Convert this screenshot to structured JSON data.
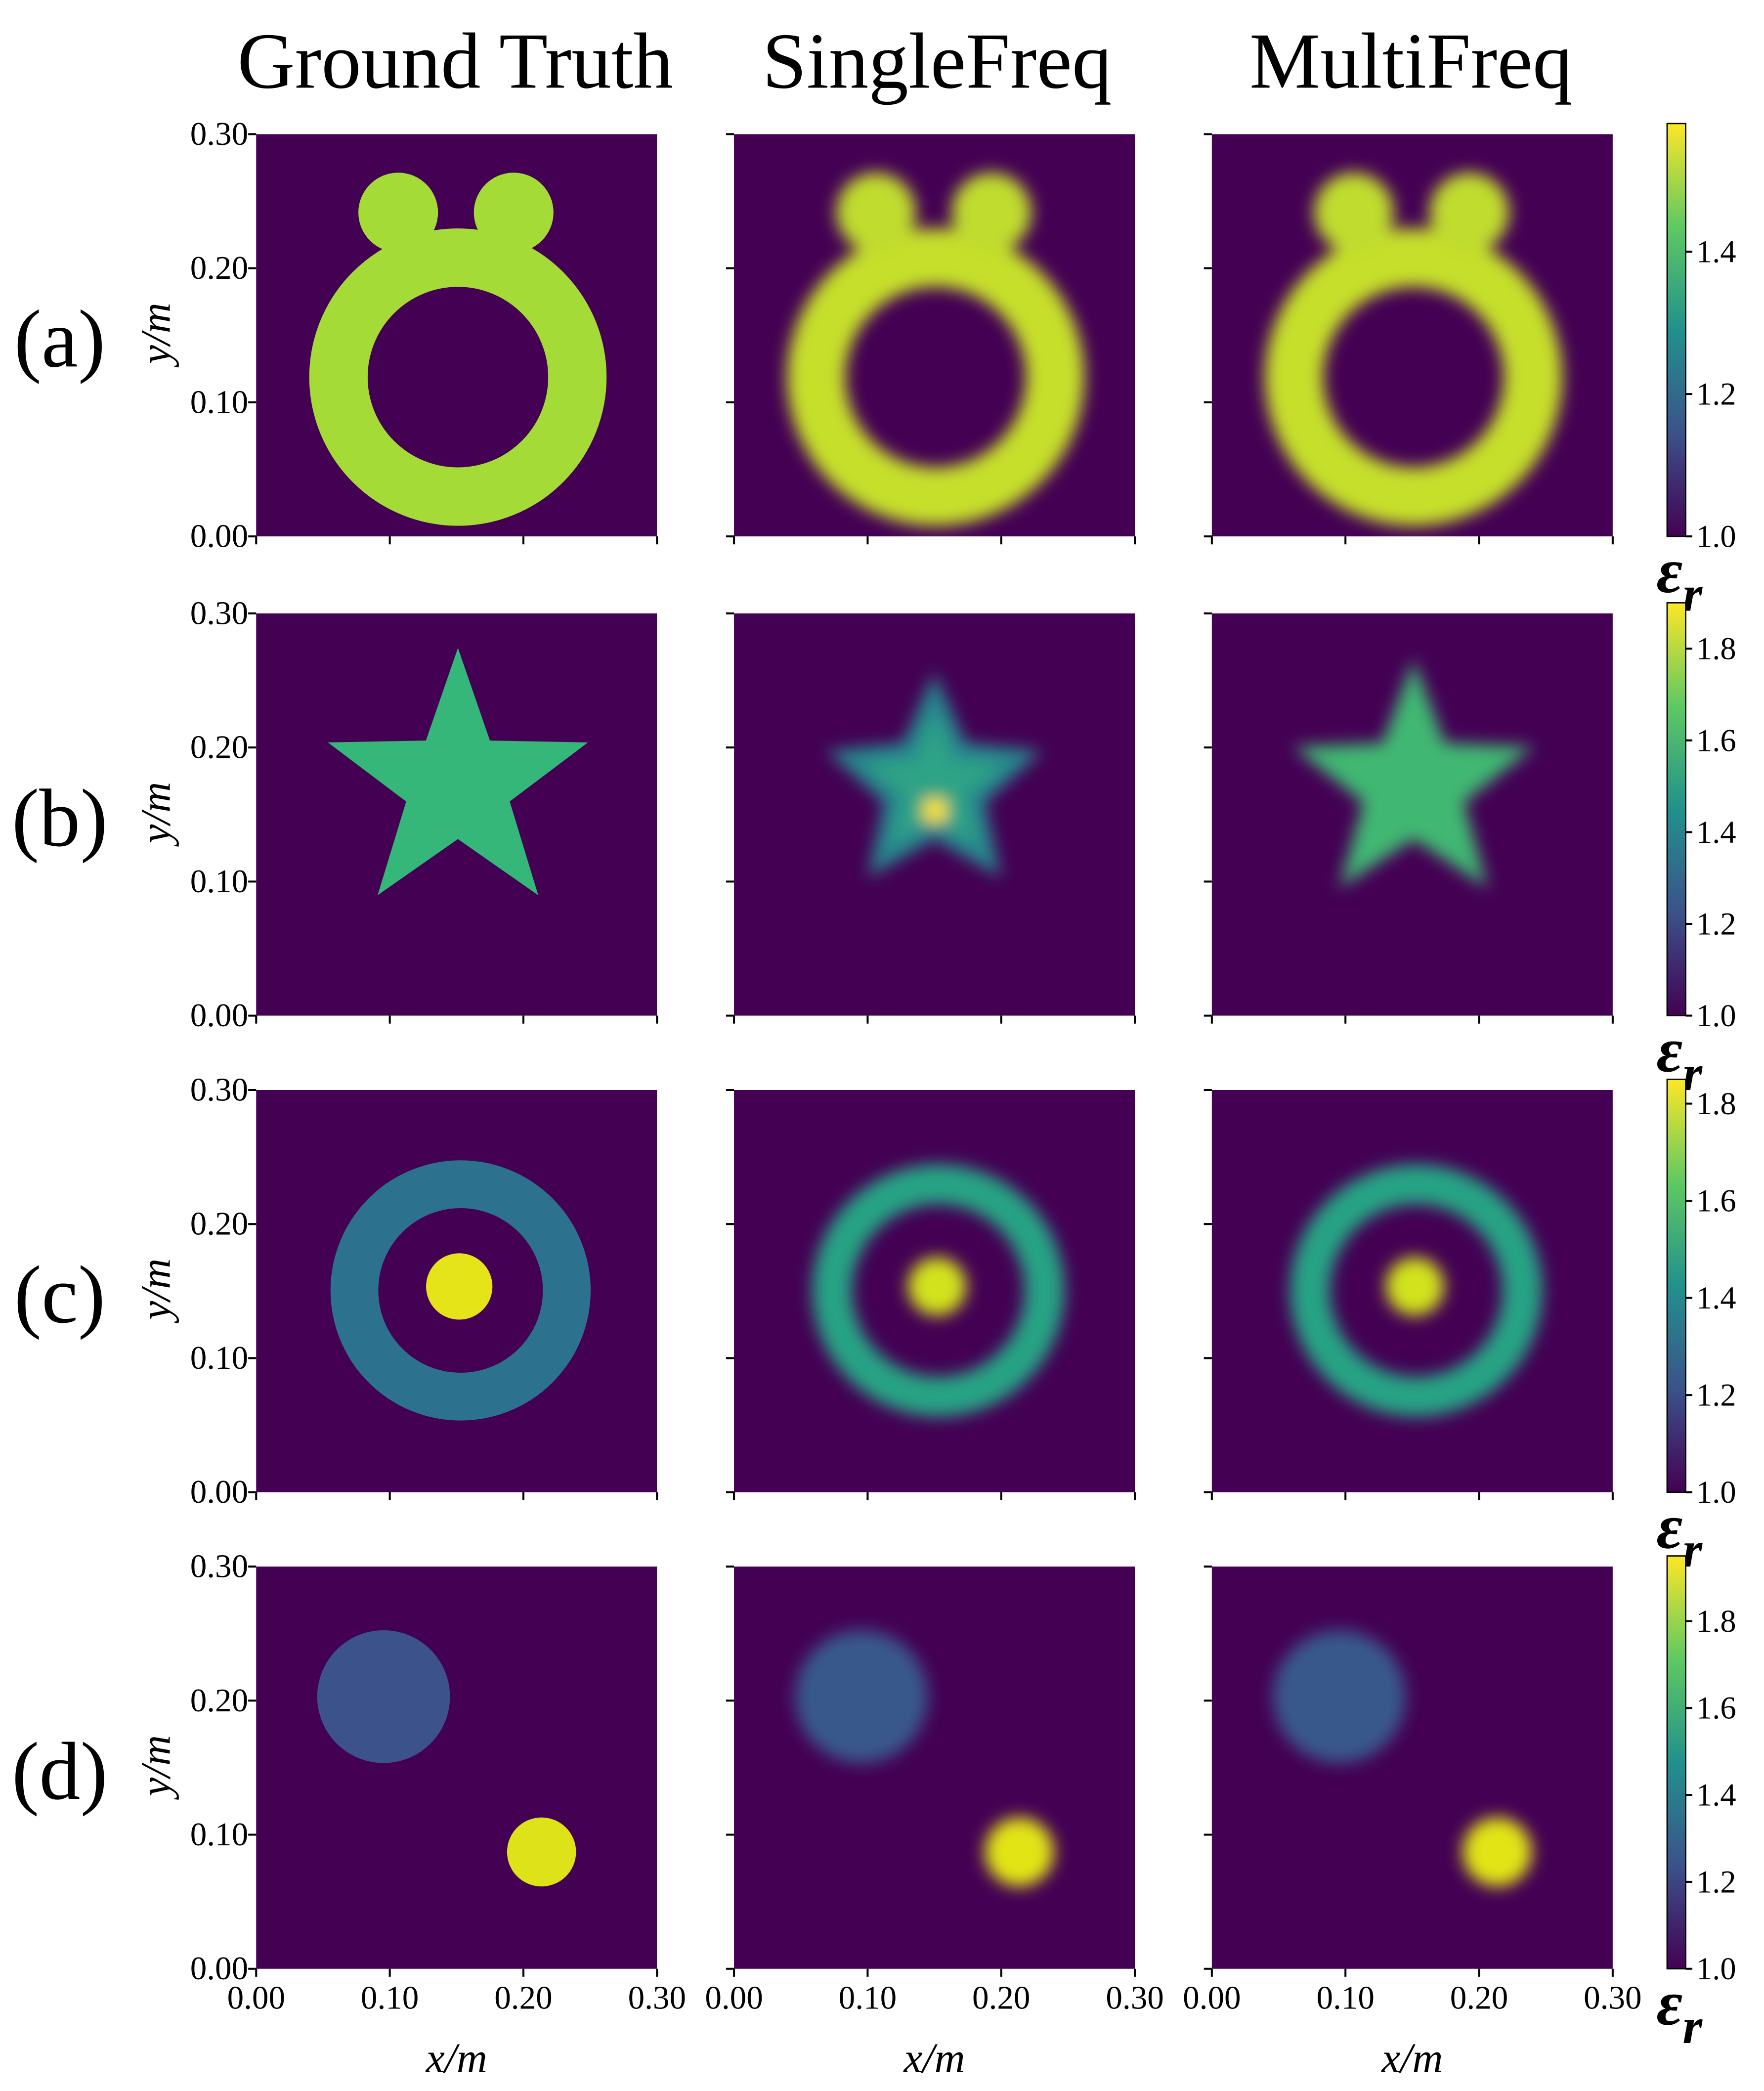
{
  "column_titles": [
    "Ground Truth",
    "SingleFreq",
    "MultiFreq"
  ],
  "chart_data": [
    {
      "type": "heatmap",
      "label": "(a)",
      "ylabel": "y/m",
      "colormap": "viridis",
      "xlim": [
        0,
        0.3
      ],
      "ylim": [
        0,
        0.3
      ],
      "xticks": [
        0,
        0.1,
        0.2,
        0.3
      ],
      "yticks": [
        {
          "value": 0,
          "label": "0.00"
        },
        {
          "value": 0.1,
          "label": "0.10"
        },
        {
          "value": 0.2,
          "label": "0.20"
        },
        {
          "value": 0.3,
          "label": "0.30"
        }
      ],
      "colorbar": {
        "lim": [
          1,
          1.58
        ],
        "ticks": [
          {
            "value": 1,
            "label": "1.0"
          },
          1.2,
          1.4
        ],
        "symbol": "ε",
        "subscript": "r"
      }
    },
    {
      "type": "heatmap",
      "label": "(b)",
      "ylabel": "y/m",
      "colormap": "viridis",
      "xlim": [
        0,
        0.3
      ],
      "ylim": [
        0,
        0.3
      ],
      "xticks": [
        0,
        0.1,
        0.2,
        0.3
      ],
      "yticks": [
        {
          "value": 0,
          "label": "0.00"
        },
        {
          "value": 0.1,
          "label": "0.10"
        },
        {
          "value": 0.2,
          "label": "0.20"
        },
        {
          "value": 0.3,
          "label": "0.30"
        }
      ],
      "colorbar": {
        "lim": [
          1,
          1.9
        ],
        "ticks": [
          {
            "value": 1,
            "label": "1.0"
          },
          1.2,
          1.4,
          1.6,
          1.8
        ],
        "symbol": "ε",
        "subscript": "r"
      }
    },
    {
      "type": "heatmap",
      "label": "(c)",
      "ylabel": "y/m",
      "colormap": "viridis",
      "xlim": [
        0,
        0.3
      ],
      "ylim": [
        0,
        0.3
      ],
      "xticks": [
        0,
        0.1,
        0.2,
        0.3
      ],
      "yticks": [
        {
          "value": 0,
          "label": "0.00"
        },
        {
          "value": 0.1,
          "label": "0.10"
        },
        {
          "value": 0.2,
          "label": "0.20"
        },
        {
          "value": 0.3,
          "label": "0.30"
        }
      ],
      "colorbar": {
        "lim": [
          1,
          1.85
        ],
        "ticks": [
          {
            "value": 1,
            "label": "1.0"
          },
          1.2,
          1.4,
          1.6,
          1.8
        ],
        "symbol": "ε",
        "subscript": "r"
      }
    },
    {
      "type": "heatmap",
      "label": "(d)",
      "ylabel": "y/m",
      "xlabel": "x/m",
      "colormap": "viridis",
      "xlim": [
        0,
        0.3
      ],
      "ylim": [
        0,
        0.3
      ],
      "xticks": [
        {
          "value": 0,
          "label": "0.00"
        },
        {
          "value": 0.1,
          "label": "0.10"
        },
        {
          "value": 0.2,
          "label": "0.20"
        },
        {
          "value": 0.3,
          "label": "0.30"
        }
      ],
      "yticks": [
        {
          "value": 0,
          "label": "0.00"
        },
        {
          "value": 0.1,
          "label": "0.10"
        },
        {
          "value": 0.2,
          "label": "0.20"
        },
        {
          "value": 0.3,
          "label": "0.30"
        }
      ],
      "colorbar": {
        "lim": [
          1,
          1.95
        ],
        "ticks": [
          {
            "value": 1,
            "label": "1.0"
          },
          1.2,
          1.4,
          1.6,
          1.8
        ],
        "symbol": "ε",
        "subscript": "r"
      }
    }
  ]
}
